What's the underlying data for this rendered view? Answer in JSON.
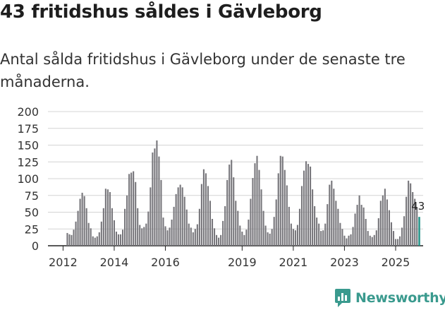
{
  "title": "43 fritidshus såldes i Gävleborg",
  "subtitle": "Antal sålda fritidshus i Gävleborg under de senaste tre månaderna.",
  "brand": {
    "name": "Newsworthy",
    "icon": "newsworthy-chart-icon",
    "color": "#3a9a8e"
  },
  "colors": {
    "bar": "#77767b",
    "highlight": "#26968a",
    "grid": "#d4d4d4",
    "axis": "#222222"
  },
  "chart_data": {
    "type": "bar",
    "title": "",
    "xlabel": "",
    "ylabel": "",
    "ylim": [
      0,
      200
    ],
    "yticks": [
      "0",
      "25",
      "50",
      "75",
      "100",
      "125",
      "150",
      "175",
      "200"
    ],
    "xticks": [
      {
        "label": "2012",
        "index": 6
      },
      {
        "label": "2014",
        "index": 30
      },
      {
        "label": "2016",
        "index": 54
      },
      {
        "label": "2019",
        "index": 90
      },
      {
        "label": "2021",
        "index": 114
      },
      {
        "label": "2023",
        "index": 138
      },
      {
        "label": "2025",
        "index": 162
      }
    ],
    "start_index": 8,
    "values": [
      19,
      17,
      16,
      24,
      36,
      52,
      70,
      79,
      74,
      56,
      34,
      26,
      14,
      12,
      14,
      20,
      36,
      56,
      85,
      84,
      80,
      56,
      38,
      21,
      17,
      17,
      24,
      55,
      75,
      107,
      109,
      111,
      95,
      56,
      31,
      26,
      28,
      33,
      51,
      87,
      139,
      145,
      157,
      133,
      98,
      42,
      29,
      23,
      27,
      39,
      58,
      77,
      87,
      91,
      87,
      73,
      54,
      33,
      27,
      20,
      25,
      32,
      55,
      92,
      114,
      108,
      89,
      67,
      40,
      26,
      16,
      12,
      16,
      37,
      59,
      98,
      121,
      128,
      102,
      67,
      52,
      30,
      21,
      16,
      24,
      39,
      70,
      101,
      123,
      134,
      113,
      84,
      52,
      30,
      20,
      18,
      25,
      43,
      69,
      108,
      134,
      133,
      113,
      90,
      58,
      33,
      25,
      23,
      31,
      55,
      89,
      112,
      126,
      122,
      118,
      84,
      59,
      42,
      33,
      22,
      23,
      33,
      62,
      91,
      97,
      85,
      67,
      55,
      34,
      25,
      15,
      11,
      15,
      17,
      28,
      48,
      61,
      75,
      61,
      57,
      40,
      22,
      15,
      13,
      16,
      23,
      41,
      67,
      75,
      85,
      69,
      53,
      35,
      22,
      10,
      10,
      14,
      27,
      44,
      73,
      97,
      93,
      80,
      70,
      57,
      43
    ],
    "annotation": {
      "label": "43",
      "value": 43
    }
  }
}
